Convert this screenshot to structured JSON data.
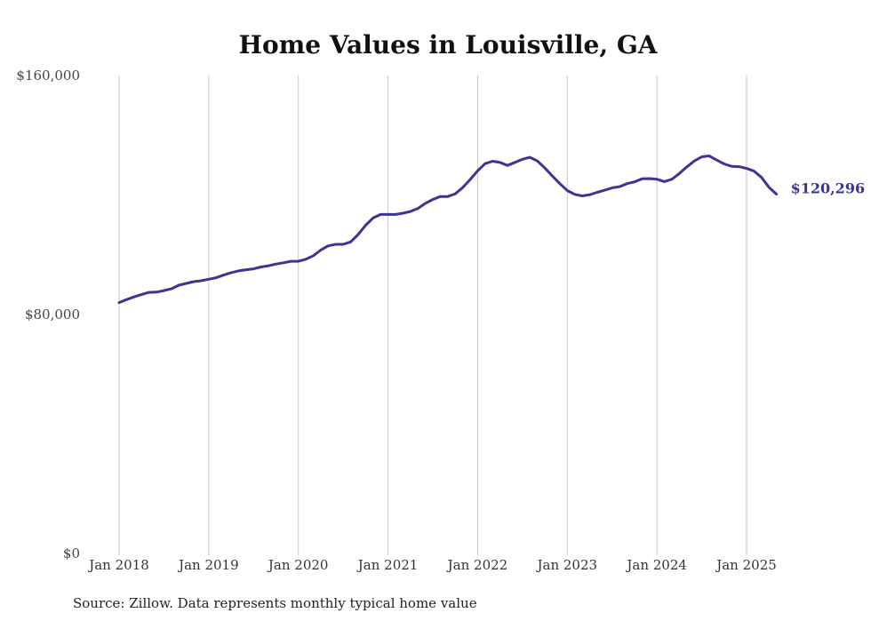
{
  "chart_data": {
    "type": "line",
    "title": "Home Values in Louisville, GA",
    "xlabel": "",
    "ylabel": "",
    "ylim": [
      0,
      160000
    ],
    "yticks": [
      "$0",
      "$80,000",
      "$160,000"
    ],
    "ytick_values": [
      0,
      80000,
      160000
    ],
    "xticks": [
      "Jan 2018",
      "Jan 2019",
      "Jan 2020",
      "Jan 2021",
      "Jan 2022",
      "Jan 2023",
      "Jan 2024",
      "Jan 2025"
    ],
    "xtick_values": [
      2018,
      2019,
      2020,
      2021,
      2022,
      2023,
      2024,
      2025
    ],
    "grid": "vertical",
    "end_label": "$120,296",
    "series": [
      {
        "color": "#3b3594",
        "x": [
          2018.0,
          2018.083,
          2018.167,
          2018.25,
          2018.333,
          2018.417,
          2018.5,
          2018.583,
          2018.667,
          2018.75,
          2018.833,
          2018.917,
          2019.0,
          2019.083,
          2019.167,
          2019.25,
          2019.333,
          2019.417,
          2019.5,
          2019.583,
          2019.667,
          2019.75,
          2019.833,
          2019.917,
          2020.0,
          2020.083,
          2020.167,
          2020.25,
          2020.333,
          2020.417,
          2020.5,
          2020.583,
          2020.667,
          2020.75,
          2020.833,
          2020.917,
          2021.0,
          2021.083,
          2021.167,
          2021.25,
          2021.333,
          2021.417,
          2021.5,
          2021.583,
          2021.667,
          2021.75,
          2021.833,
          2021.917,
          2022.0,
          2022.083,
          2022.167,
          2022.25,
          2022.333,
          2022.417,
          2022.5,
          2022.583,
          2022.667,
          2022.75,
          2022.833,
          2022.917,
          2023.0,
          2023.083,
          2023.167,
          2023.25,
          2023.333,
          2023.417,
          2023.5,
          2023.583,
          2023.667,
          2023.75,
          2023.833,
          2023.917,
          2024.0,
          2024.083,
          2024.167,
          2024.25,
          2024.333,
          2024.417,
          2024.5,
          2024.583,
          2024.667,
          2024.75,
          2024.833,
          2024.917,
          2025.0,
          2025.083,
          2025.167,
          2025.25,
          2025.333
        ],
        "y": [
          84000,
          85000,
          85900,
          86700,
          87400,
          87500,
          88000,
          88600,
          89800,
          90400,
          91000,
          91300,
          91800,
          92300,
          93200,
          94000,
          94600,
          95000,
          95300,
          95900,
          96300,
          96900,
          97300,
          97800,
          97800,
          98500,
          99700,
          101600,
          103000,
          103500,
          103500,
          104300,
          106800,
          109900,
          112300,
          113500,
          113500,
          113500,
          113900,
          114500,
          115500,
          117200,
          118500,
          119500,
          119500,
          120400,
          122500,
          125200,
          128100,
          130500,
          131300,
          130900,
          129900,
          130900,
          132000,
          132600,
          131400,
          129000,
          126400,
          123800,
          121500,
          120200,
          119700,
          120100,
          120900,
          121600,
          122400,
          122800,
          123800,
          124400,
          125400,
          125500,
          125300,
          124500,
          125300,
          127200,
          129400,
          131400,
          132800,
          133100,
          131700,
          130400,
          129600,
          129500,
          128900,
          128000,
          125900,
          122600,
          120296
        ]
      }
    ]
  },
  "source": "Source: Zillow. Data represents monthly typical home value"
}
